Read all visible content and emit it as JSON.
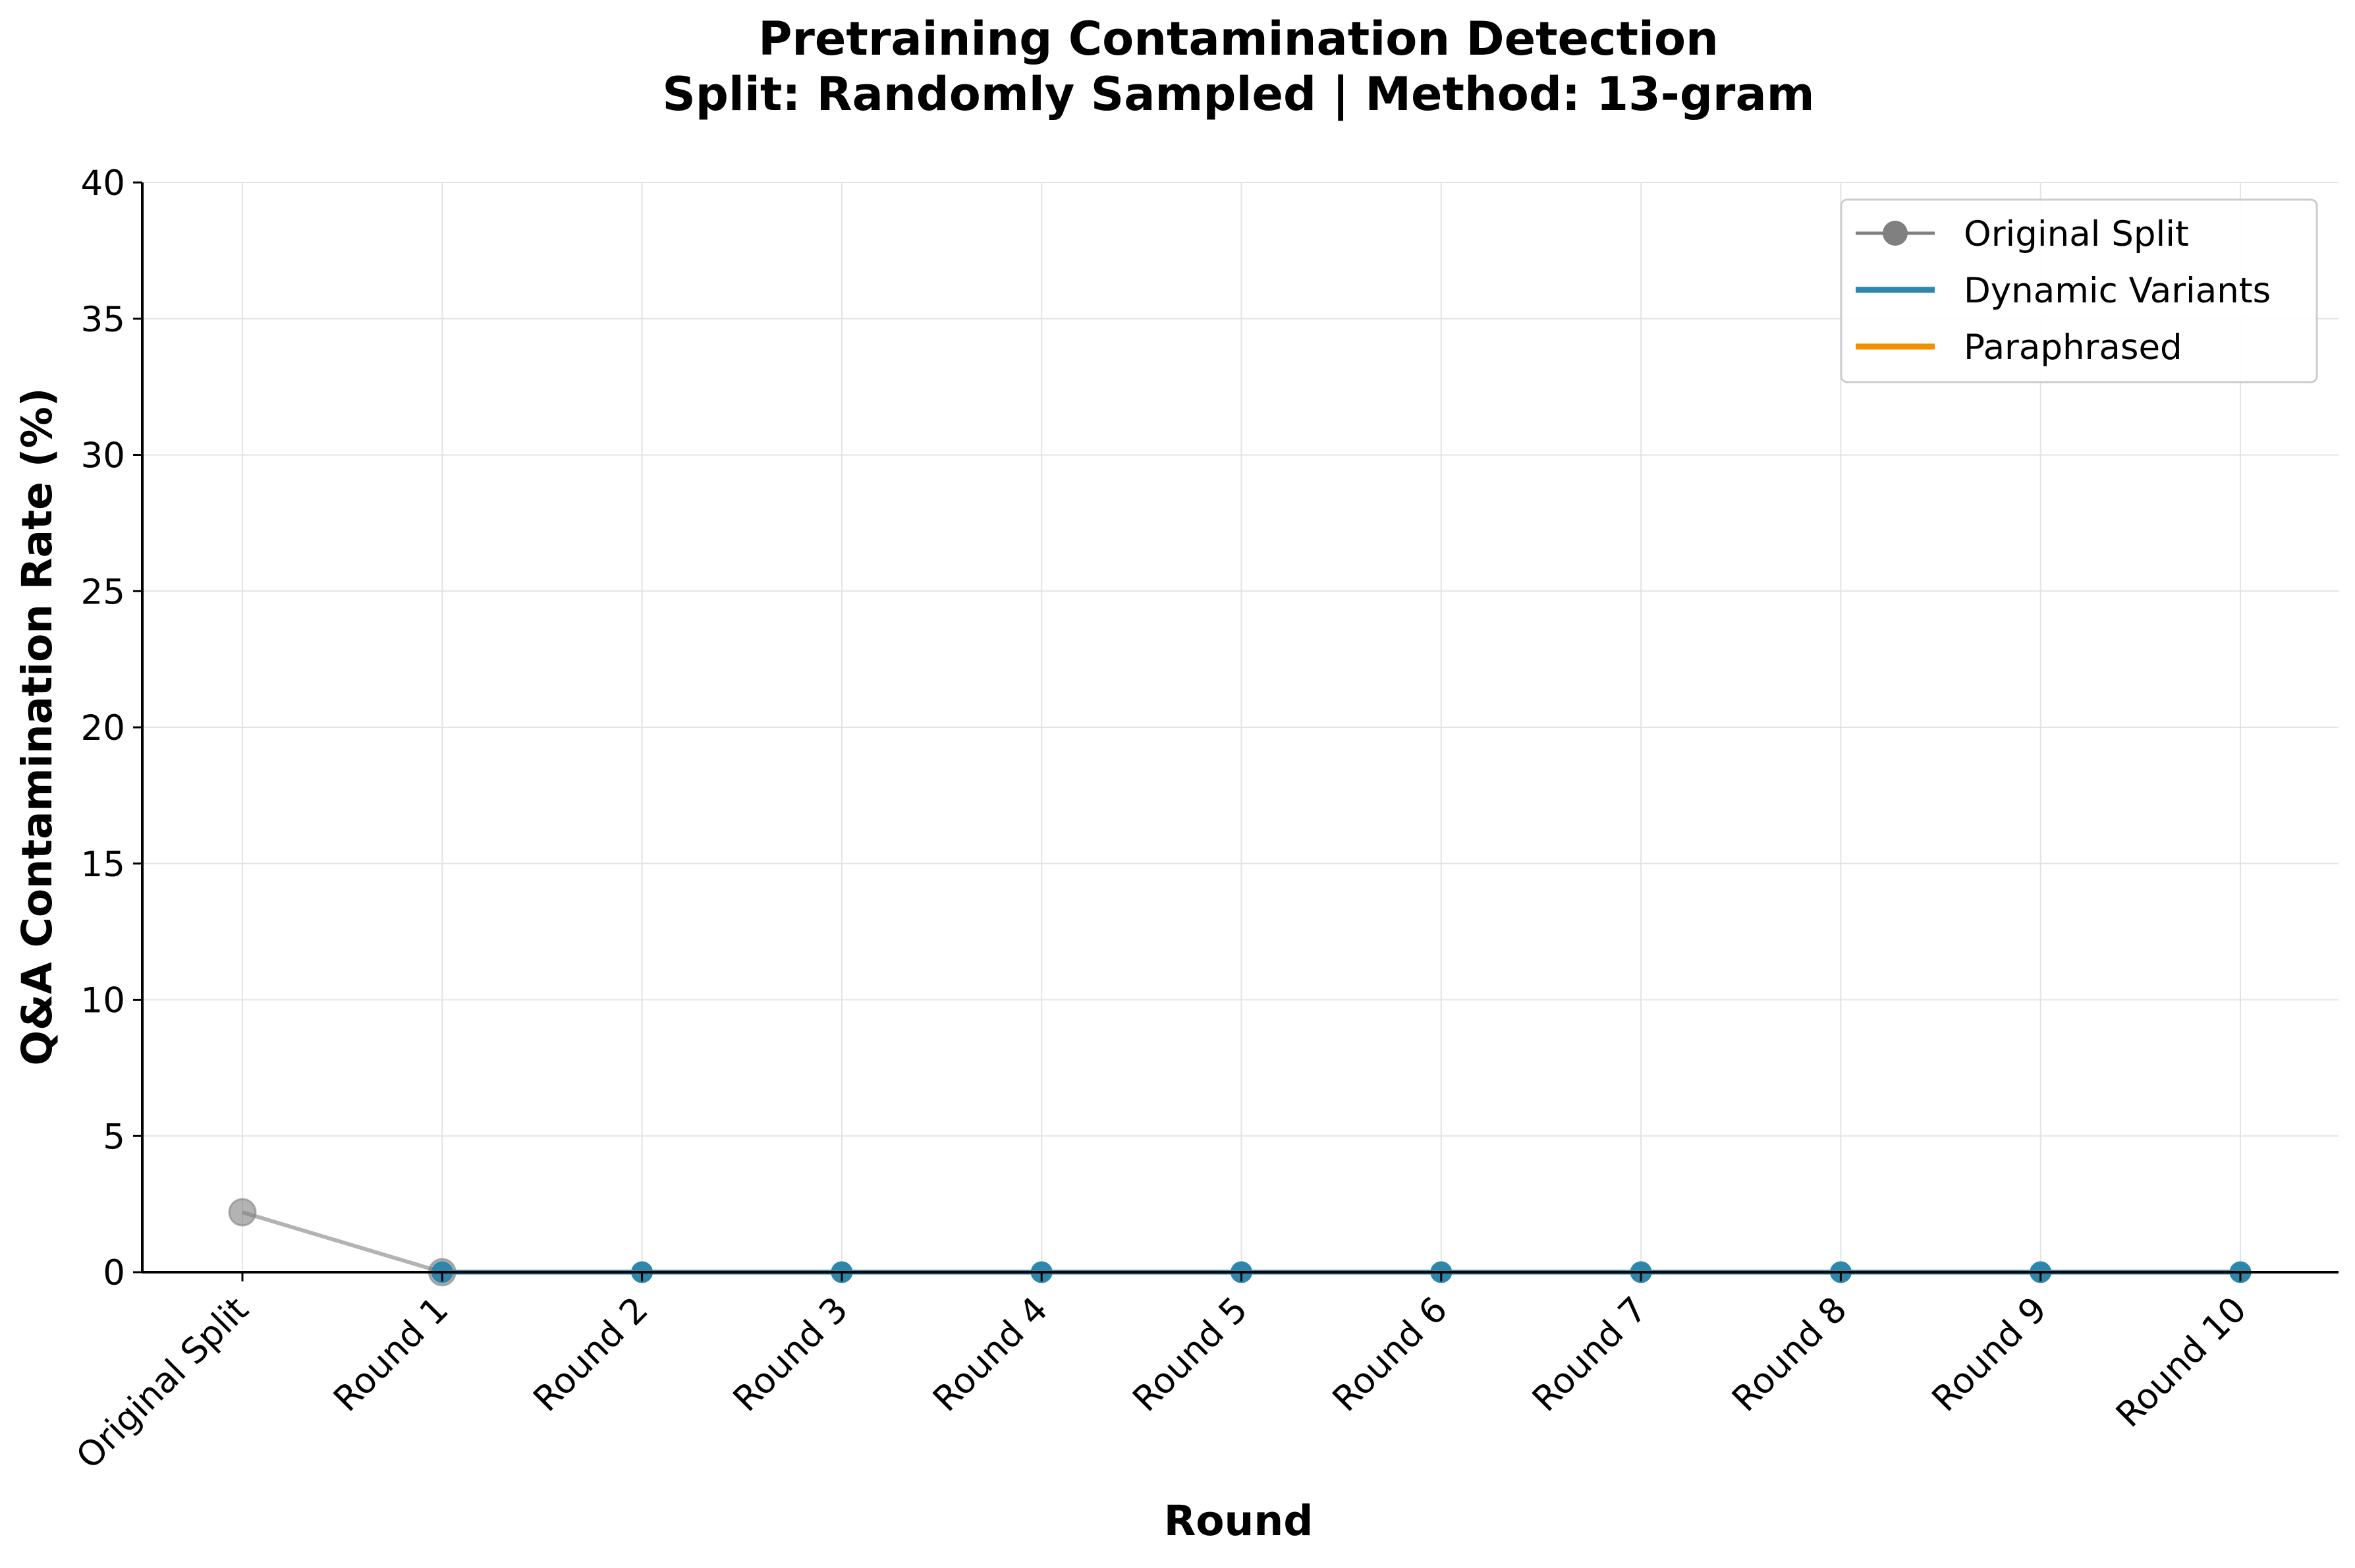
{
  "chart_data": {
    "type": "line",
    "title": "Pretraining Contamination Detection",
    "subtitle": "Split: Randomly Sampled | Method: 13-gram",
    "xlabel": "Round",
    "ylabel": "Q&A Contamination Rate (%)",
    "categories": [
      "Original Split",
      "Round 1",
      "Round 2",
      "Round 3",
      "Round 4",
      "Round 5",
      "Round 6",
      "Round 7",
      "Round 8",
      "Round 9",
      "Round 10"
    ],
    "ylim": [
      0,
      40
    ],
    "yticks": [
      0,
      5,
      10,
      15,
      20,
      25,
      30,
      35,
      40
    ],
    "grid": true,
    "legend_position": "top-right",
    "series": [
      {
        "name": "Original Split",
        "color": "#808080",
        "marker": "circle",
        "points": [
          {
            "x": "Original Split",
            "y": 2.2
          },
          {
            "x": "Round 1",
            "y": 0
          }
        ]
      },
      {
        "name": "Dynamic Variants",
        "color": "#2E86AB",
        "marker": "circle",
        "points": [
          {
            "x": "Round 1",
            "y": 0
          },
          {
            "x": "Round 2",
            "y": 0
          },
          {
            "x": "Round 3",
            "y": 0
          },
          {
            "x": "Round 4",
            "y": 0
          },
          {
            "x": "Round 5",
            "y": 0
          },
          {
            "x": "Round 6",
            "y": 0
          },
          {
            "x": "Round 7",
            "y": 0
          },
          {
            "x": "Round 8",
            "y": 0
          },
          {
            "x": "Round 9",
            "y": 0
          },
          {
            "x": "Round 10",
            "y": 0
          }
        ]
      },
      {
        "name": "Paraphrased",
        "color": "#F18F01",
        "marker": "none",
        "points": []
      }
    ]
  }
}
